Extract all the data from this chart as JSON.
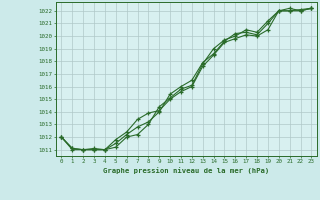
{
  "title": "Graphe pression niveau de la mer (hPa)",
  "bg_color": "#cceaea",
  "plot_bg_color": "#d8f0f0",
  "line_color": "#2a6b2a",
  "grid_color": "#b0c8c8",
  "xlim": [
    -0.5,
    23.5
  ],
  "ylim": [
    1010.5,
    1022.7
  ],
  "yticks": [
    1011,
    1012,
    1013,
    1014,
    1015,
    1016,
    1017,
    1018,
    1019,
    1020,
    1021,
    1022
  ],
  "xticks": [
    0,
    1,
    2,
    3,
    4,
    5,
    6,
    7,
    8,
    9,
    10,
    11,
    12,
    13,
    14,
    15,
    16,
    17,
    18,
    19,
    20,
    21,
    22,
    23
  ],
  "series": [
    [
      1012.0,
      1011.1,
      1011.0,
      1011.1,
      1011.0,
      1011.8,
      1012.4,
      1013.4,
      1013.9,
      1014.1,
      1015.0,
      1015.6,
      1016.0,
      1017.6,
      1018.5,
      1019.5,
      1019.8,
      1020.1,
      1020.0,
      1020.5,
      1022.0,
      1022.0,
      1022.1,
      1022.2
    ],
    [
      1012.0,
      1011.1,
      1011.0,
      1011.0,
      1011.0,
      1011.5,
      1012.2,
      1012.8,
      1013.2,
      1014.0,
      1015.4,
      1016.0,
      1016.5,
      1017.9,
      1018.6,
      1019.6,
      1020.2,
      1020.3,
      1020.1,
      1021.0,
      1022.0,
      1022.0,
      1022.0,
      1022.2
    ],
    [
      1012.0,
      1011.0,
      1011.0,
      1011.0,
      1011.0,
      1011.2,
      1012.0,
      1012.2,
      1013.0,
      1014.4,
      1015.1,
      1015.8,
      1016.1,
      1017.8,
      1019.0,
      1019.7,
      1020.0,
      1020.5,
      1020.3,
      1021.2,
      1022.0,
      1022.2,
      1022.0,
      1022.2
    ]
  ]
}
